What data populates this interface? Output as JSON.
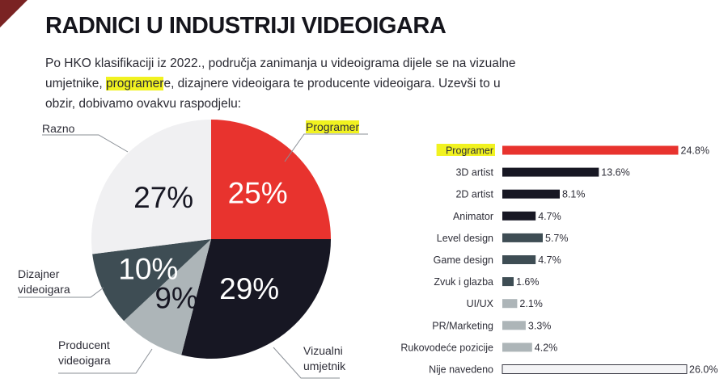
{
  "page": {
    "title": "RADNICI U INDUSTRIJI VIDEOIGARA",
    "intro": {
      "before": "Po HKO klasifikaciji iz 2022., područja zanimanja u videoigrama dijele se na vizualne umjetnike, ",
      "highlight": "programer",
      "after": "e, dizajnere videoigara te producente videoigara. Uzevši to u obzir, dobivamo ovakvu raspodjelu:"
    }
  },
  "chart_data": [
    {
      "type": "pie",
      "slices": [
        {
          "label": "Programer",
          "label_lines": [
            "Programer"
          ],
          "value": 25,
          "value_label": "25%",
          "color": "#e8332e",
          "highlight": true
        },
        {
          "label": "Vizualni umjetnik",
          "label_lines": [
            "Vizualni",
            "umjetnik"
          ],
          "value": 29,
          "value_label": "29%",
          "color": "#171723"
        },
        {
          "label": "Producent videoigara",
          "label_lines": [
            "Producent",
            "videoigara"
          ],
          "value": 9,
          "value_label": "9%",
          "color": "#adb5b8"
        },
        {
          "label": "Dizajner videoigara",
          "label_lines": [
            "Dizajner",
            "videoigara"
          ],
          "value": 10,
          "value_label": "10%",
          "color": "#3e4d54"
        },
        {
          "label": "Razno",
          "label_lines": [
            "Razno"
          ],
          "value": 27,
          "value_label": "27%",
          "color": "#f0f0f2"
        }
      ]
    },
    {
      "type": "bar",
      "orientation": "horizontal",
      "categories": [
        "Programer",
        "3D artist",
        "2D artist",
        "Animator",
        "Level design",
        "Game design",
        "Zvuk i glazba",
        "UI/UX",
        "PR/Marketing",
        "Rukovodeće pozicije",
        "Nije navedeno"
      ],
      "values": [
        24.8,
        13.6,
        8.1,
        4.7,
        5.7,
        4.7,
        1.6,
        2.1,
        3.3,
        4.2,
        26.0
      ],
      "value_labels": [
        "24.8%",
        "13.6%",
        "8.1%",
        "4.7%",
        "5.7%",
        "4.7%",
        "1.6%",
        "2.1%",
        "3.3%",
        "4.2%",
        "26.0%"
      ],
      "colors": [
        "#e8332e",
        "#171723",
        "#171723",
        "#171723",
        "#3e4d54",
        "#3e4d54",
        "#3e4d54",
        "#adb5b8",
        "#adb5b8",
        "#adb5b8",
        "#f4f4f6"
      ],
      "highlight_index": 0,
      "xlim": [
        0,
        26
      ]
    }
  ]
}
